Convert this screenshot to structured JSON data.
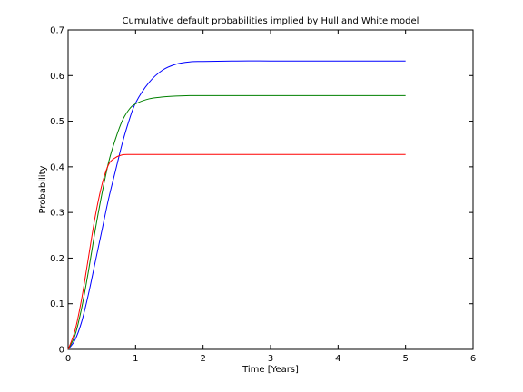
{
  "chart_data": {
    "type": "line",
    "title": "Cumulative default probabilities implied by Hull and White model",
    "xlabel": "Time [Years]",
    "ylabel": "Probability",
    "xlim": [
      0,
      6
    ],
    "ylim": [
      0,
      0.7
    ],
    "xticks": [
      0,
      1,
      2,
      3,
      4,
      5,
      6
    ],
    "yticks": [
      0,
      0.1,
      0.2,
      0.3,
      0.4,
      0.5,
      0.6,
      0.7
    ],
    "xtick_labels": [
      "0",
      "1",
      "2",
      "3",
      "4",
      "5",
      "6"
    ],
    "ytick_labels": [
      "0",
      "0.1",
      "0.2",
      "0.3",
      "0.4",
      "0.5",
      "0.6",
      "0.7"
    ],
    "grid": false,
    "legend": "none",
    "series": [
      {
        "color": "#0000ff",
        "x": [
          0,
          0.1,
          0.2,
          0.3,
          0.4,
          0.5,
          0.6,
          0.7,
          0.8,
          0.9,
          1.0,
          1.2,
          1.4,
          1.6,
          1.8,
          2.0,
          2.5,
          3.0,
          3.5,
          4.0,
          4.5,
          5.0
        ],
        "y": [
          0,
          0.02,
          0.06,
          0.12,
          0.19,
          0.26,
          0.33,
          0.39,
          0.45,
          0.5,
          0.54,
          0.585,
          0.612,
          0.625,
          0.63,
          0.631,
          0.632,
          0.632,
          0.632,
          0.632,
          0.632,
          0.632
        ]
      },
      {
        "color": "#008000",
        "x": [
          0,
          0.1,
          0.2,
          0.3,
          0.4,
          0.5,
          0.6,
          0.7,
          0.8,
          0.9,
          1.0,
          1.2,
          1.4,
          1.6,
          1.8,
          2.0,
          2.5,
          3.0,
          3.5,
          4.0,
          4.5,
          5.0
        ],
        "y": [
          0,
          0.03,
          0.09,
          0.17,
          0.26,
          0.34,
          0.41,
          0.46,
          0.5,
          0.525,
          0.538,
          0.549,
          0.553,
          0.555,
          0.556,
          0.556,
          0.556,
          0.556,
          0.556,
          0.556,
          0.556,
          0.556
        ]
      },
      {
        "color": "#ff0000",
        "x": [
          0,
          0.1,
          0.2,
          0.3,
          0.4,
          0.5,
          0.6,
          0.7,
          0.8,
          0.9,
          1.0,
          1.2,
          1.5,
          2.0,
          2.5,
          3.0,
          3.5,
          4.0,
          4.5,
          5.0
        ],
        "y": [
          0,
          0.04,
          0.11,
          0.2,
          0.29,
          0.36,
          0.405,
          0.42,
          0.426,
          0.427,
          0.427,
          0.427,
          0.427,
          0.427,
          0.427,
          0.427,
          0.427,
          0.427,
          0.427,
          0.427
        ]
      }
    ]
  }
}
